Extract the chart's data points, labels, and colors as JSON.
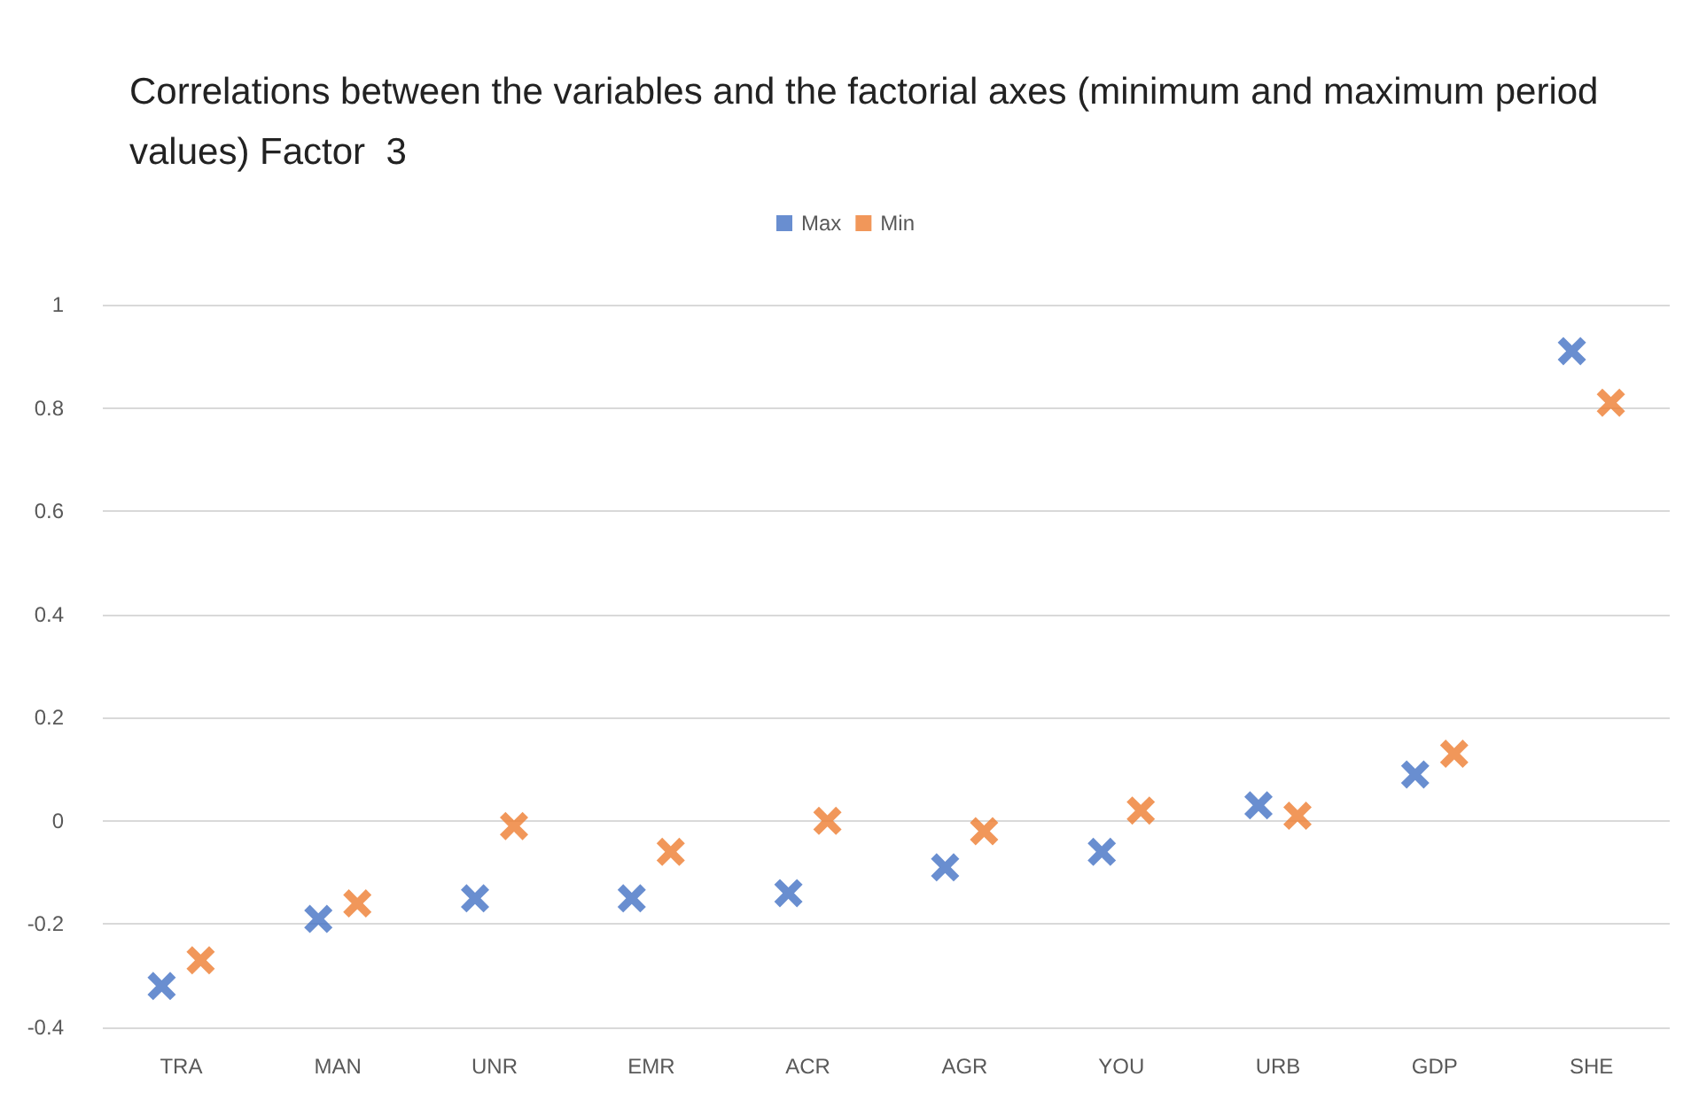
{
  "chart_data": {
    "type": "scatter",
    "title": "Correlations between the variables and the factorial axes (minimum and maximum period values) Factor  3",
    "categories": [
      "TRA",
      "MAN",
      "UNR",
      "EMR",
      "ACR",
      "AGR",
      "YOU",
      "URB",
      "GDP",
      "SHE"
    ],
    "series": [
      {
        "name": "Max",
        "color": "#4472c4",
        "values": [
          -0.32,
          -0.19,
          -0.15,
          -0.15,
          -0.14,
          -0.09,
          -0.06,
          0.03,
          0.09,
          0.91
        ]
      },
      {
        "name": "Min",
        "color": "#ed7d31",
        "values": [
          -0.27,
          -0.16,
          -0.01,
          -0.06,
          0.0,
          -0.02,
          0.02,
          0.01,
          0.13,
          0.81
        ]
      }
    ],
    "ylim": [
      -0.4,
      1
    ],
    "yticks": [
      -0.4,
      -0.2,
      0,
      0.2,
      0.4,
      0.6,
      0.8,
      1
    ],
    "grid": "y",
    "legend": "top",
    "marker": "cross"
  }
}
